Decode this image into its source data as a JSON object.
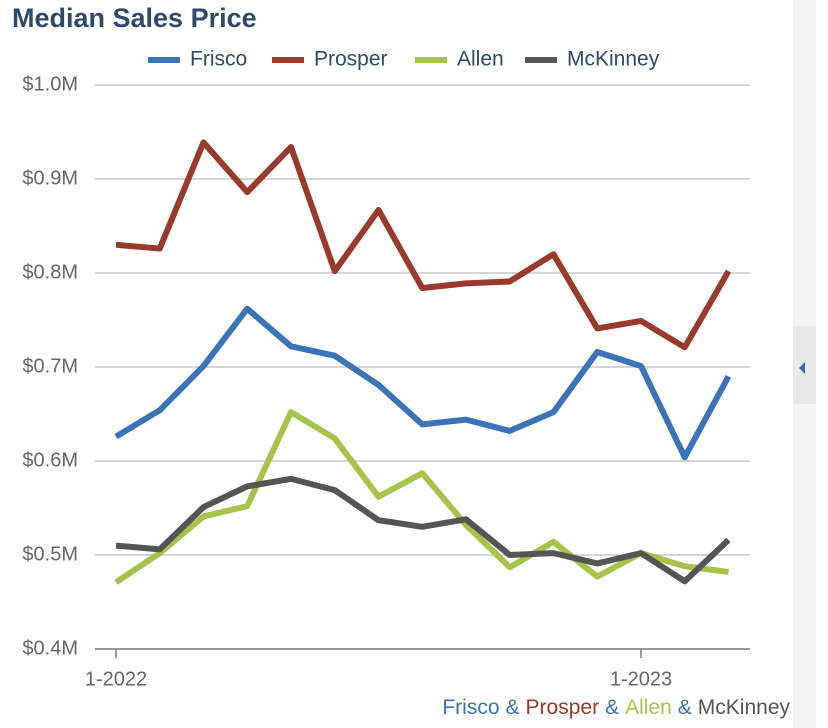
{
  "chart_data": {
    "type": "line",
    "title": "Median Sales Price",
    "categories": [
      "1-2022",
      null,
      null,
      null,
      null,
      null,
      null,
      null,
      null,
      null,
      null,
      null,
      "1-2023",
      null,
      null
    ],
    "series": [
      {
        "name": "Frisco",
        "color": "#3a73b8",
        "values": [
          626000,
          654000,
          701000,
          762000,
          722000,
          712000,
          681000,
          639000,
          644000,
          632000,
          652000,
          716000,
          701000,
          604000,
          690000
        ]
      },
      {
        "name": "Prosper",
        "color": "#993a2c",
        "values": [
          830000,
          826000,
          939000,
          886000,
          934000,
          802000,
          867000,
          784000,
          789000,
          791000,
          820000,
          741000,
          749000,
          721000,
          802000
        ]
      },
      {
        "name": "Allen",
        "color": "#a6c44a",
        "values": [
          471000,
          502000,
          541000,
          552000,
          652000,
          624000,
          562000,
          587000,
          532000,
          487000,
          514000,
          477000,
          502000,
          488000,
          482000
        ]
      },
      {
        "name": "McKinney",
        "color": "#555555",
        "values": [
          510000,
          506000,
          551000,
          573000,
          581000,
          569000,
          537000,
          530000,
          538000,
          500000,
          502000,
          491000,
          502000,
          472000,
          516000
        ]
      }
    ],
    "ylim": [
      400000,
      1000000
    ],
    "yticks": [
      {
        "value": 400000,
        "label": "$0.4M"
      },
      {
        "value": 500000,
        "label": "$0.5M"
      },
      {
        "value": 600000,
        "label": "$0.6M"
      },
      {
        "value": 700000,
        "label": "$0.7M"
      },
      {
        "value": 800000,
        "label": "$0.8M"
      },
      {
        "value": 900000,
        "label": "$0.9M"
      },
      {
        "value": 1000000,
        "label": "$1.0M"
      }
    ],
    "grid": true,
    "legend": "top",
    "footer_separator": "&"
  }
}
